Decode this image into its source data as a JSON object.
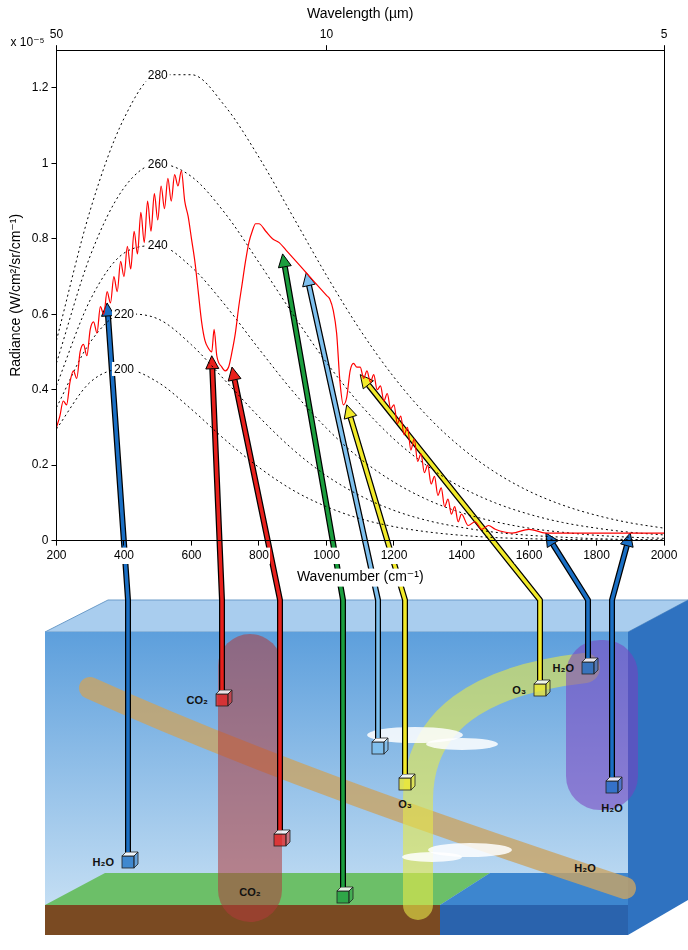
{
  "chart_data": {
    "type": "line",
    "xlabel": "Wavenumber (cm⁻¹)",
    "ylabel": "Radiance (W/cm²/sr/cm⁻¹)",
    "y_multiplier": "x 10⁻⁵",
    "x2label": "Wavelength (µm)",
    "xlim": [
      200,
      2000
    ],
    "xticks": [
      200,
      400,
      600,
      800,
      1000,
      1200,
      1400,
      1600,
      1800,
      2000
    ],
    "x2lim": [
      200,
      2000
    ],
    "x2ticks": [
      {
        "value": 200,
        "label": "50"
      },
      {
        "value": 1000,
        "label": "10"
      },
      {
        "value": 2000,
        "label": "5"
      }
    ],
    "ylim": [
      0,
      1.3
    ],
    "yticks": [
      0,
      0.2,
      0.4,
      0.6,
      0.8,
      1,
      1.2
    ],
    "grid": false,
    "series": [
      {
        "color": "#ff0000",
        "line_style": "solid",
        "x": [
          200,
          210,
          220,
          230,
          240,
          250,
          260,
          270,
          280,
          290,
          300,
          310,
          320,
          330,
          340,
          350,
          360,
          370,
          380,
          390,
          400,
          410,
          420,
          430,
          440,
          450,
          460,
          470,
          480,
          490,
          500,
          510,
          520,
          530,
          540,
          550,
          560,
          570,
          580,
          590,
          600,
          610,
          620,
          630,
          640,
          650,
          660,
          667,
          675,
          690,
          700,
          710,
          720,
          730,
          740,
          750,
          760,
          770,
          780,
          790,
          800,
          820,
          840,
          860,
          880,
          900,
          920,
          940,
          960,
          980,
          1000,
          1010,
          1020,
          1030,
          1040,
          1050,
          1060,
          1070,
          1080,
          1090,
          1100,
          1110,
          1120,
          1130,
          1140,
          1150,
          1160,
          1170,
          1180,
          1190,
          1200,
          1210,
          1220,
          1230,
          1240,
          1250,
          1260,
          1270,
          1280,
          1290,
          1300,
          1310,
          1320,
          1330,
          1340,
          1350,
          1360,
          1370,
          1380,
          1390,
          1400,
          1420,
          1440,
          1460,
          1480,
          1500,
          1550,
          1600,
          1650,
          1700,
          1750,
          1800,
          1850,
          1900,
          1950,
          2000
        ],
        "values": [
          0.3,
          0.33,
          0.37,
          0.36,
          0.42,
          0.45,
          0.43,
          0.5,
          0.52,
          0.49,
          0.56,
          0.58,
          0.55,
          0.62,
          0.6,
          0.66,
          0.63,
          0.7,
          0.66,
          0.74,
          0.7,
          0.78,
          0.72,
          0.82,
          0.76,
          0.87,
          0.79,
          0.9,
          0.82,
          0.92,
          0.85,
          0.94,
          0.88,
          0.96,
          0.9,
          0.97,
          0.94,
          0.98,
          0.9,
          0.86,
          0.8,
          0.74,
          0.66,
          0.58,
          0.53,
          0.51,
          0.5,
          0.56,
          0.49,
          0.46,
          0.45,
          0.46,
          0.5,
          0.55,
          0.62,
          0.68,
          0.74,
          0.79,
          0.82,
          0.84,
          0.84,
          0.82,
          0.8,
          0.79,
          0.77,
          0.75,
          0.73,
          0.71,
          0.69,
          0.67,
          0.65,
          0.64,
          0.61,
          0.55,
          0.42,
          0.36,
          0.38,
          0.45,
          0.47,
          0.46,
          0.46,
          0.43,
          0.45,
          0.42,
          0.44,
          0.4,
          0.41,
          0.37,
          0.39,
          0.35,
          0.36,
          0.31,
          0.33,
          0.28,
          0.3,
          0.24,
          0.27,
          0.21,
          0.23,
          0.18,
          0.2,
          0.15,
          0.17,
          0.12,
          0.14,
          0.09,
          0.11,
          0.07,
          0.09,
          0.05,
          0.07,
          0.04,
          0.05,
          0.03,
          0.04,
          0.03,
          0.02,
          0.03,
          0.02,
          0.02,
          0.02,
          0.02,
          0.02,
          0.02,
          0.02,
          0.02
        ]
      },
      {
        "name": "280",
        "color": "#000000",
        "line_style": "dotted",
        "x": [
          200,
          300,
          400,
          500,
          600,
          700,
          800,
          900,
          1000,
          1100,
          1200,
          1300,
          1400,
          1500,
          1600,
          1700,
          1800,
          1900,
          2000
        ],
        "values": [
          0.531,
          0.876,
          1.119,
          1.235,
          1.235,
          1.151,
          1.016,
          0.86,
          0.703,
          0.558,
          0.433,
          0.329,
          0.246,
          0.181,
          0.131,
          0.094,
          0.067,
          0.047,
          0.033
        ]
      },
      {
        "name": "260",
        "color": "#000000",
        "line_style": "dotted",
        "x": [
          200,
          300,
          400,
          500,
          600,
          700,
          800,
          900,
          1000,
          1100,
          1200,
          1300,
          1400,
          1500,
          1600,
          1700,
          1800,
          1900,
          2000
        ],
        "values": [
          0.471,
          0.755,
          0.935,
          0.999,
          0.965,
          0.867,
          0.737,
          0.601,
          0.472,
          0.361,
          0.269,
          0.197,
          0.141,
          0.1,
          0.07,
          0.048,
          0.033,
          0.022,
          0.015
        ]
      },
      {
        "name": "240",
        "color": "#000000",
        "line_style": "dotted",
        "x": [
          200,
          300,
          400,
          500,
          600,
          700,
          800,
          900,
          1000,
          1100,
          1200,
          1300,
          1400,
          1500,
          1600,
          1700,
          1800,
          1900,
          2000
        ],
        "values": [
          0.411,
          0.638,
          0.762,
          0.782,
          0.725,
          0.624,
          0.508,
          0.396,
          0.298,
          0.217,
          0.155,
          0.108,
          0.074,
          0.05,
          0.033,
          0.022,
          0.014,
          0.009,
          0.006
        ]
      },
      {
        "name": "220",
        "color": "#000000",
        "line_style": "dotted",
        "x": [
          200,
          300,
          400,
          500,
          600,
          700,
          800,
          900,
          1000,
          1100,
          1200,
          1300,
          1400,
          1500,
          1600,
          1700,
          1800,
          1900,
          2000
        ],
        "values": [
          0.353,
          0.526,
          0.601,
          0.588,
          0.519,
          0.424,
          0.328,
          0.242,
          0.172,
          0.119,
          0.08,
          0.053,
          0.035,
          0.022,
          0.014,
          0.009,
          0.005,
          0.003,
          0.002
        ]
      },
      {
        "name": "200",
        "color": "#000000",
        "line_style": "dotted",
        "x": [
          200,
          300,
          400,
          500,
          600,
          700,
          800,
          900,
          1000,
          1100,
          1200,
          1300,
          1400,
          1500,
          1600,
          1700,
          1800,
          1900,
          2000
        ],
        "values": [
          0.296,
          0.42,
          0.455,
          0.42,
          0.348,
          0.267,
          0.194,
          0.134,
          0.09,
          0.058,
          0.037,
          0.023,
          0.014,
          0.008,
          0.005,
          0.003,
          0.002,
          0.001,
          0.001
        ]
      }
    ],
    "annotations": [
      {
        "type": "arrow",
        "x": 350,
        "y": 0.63,
        "color": "#1a6fc4",
        "label": "H₂O"
      },
      {
        "type": "arrow",
        "x": 660,
        "y": 0.49,
        "color": "#e8201c",
        "label": "CO₂"
      },
      {
        "type": "arrow",
        "x": 720,
        "y": 0.46,
        "color": "#e8201c"
      },
      {
        "type": "arrow",
        "x": 870,
        "y": 0.76,
        "color": "#1b9e3e"
      },
      {
        "type": "arrow",
        "x": 940,
        "y": 0.71,
        "color": "#7ec0ee"
      },
      {
        "type": "arrow",
        "x": 1060,
        "y": 0.36,
        "color": "#f2ea2a",
        "label": "O₃"
      },
      {
        "type": "arrow",
        "x": 1100,
        "y": 0.44,
        "color": "#f2ea2a",
        "label": "O₃"
      },
      {
        "type": "arrow",
        "x": 1650,
        "y": 0.02,
        "color": "#1a6fc4",
        "label": "H₂O"
      },
      {
        "type": "arrow",
        "x": 1900,
        "y": 0.02,
        "color": "#1a6fc4",
        "label": "H₂O"
      }
    ]
  },
  "diagram": {
    "band_labels": [
      "CO₂",
      "H₂O"
    ]
  }
}
